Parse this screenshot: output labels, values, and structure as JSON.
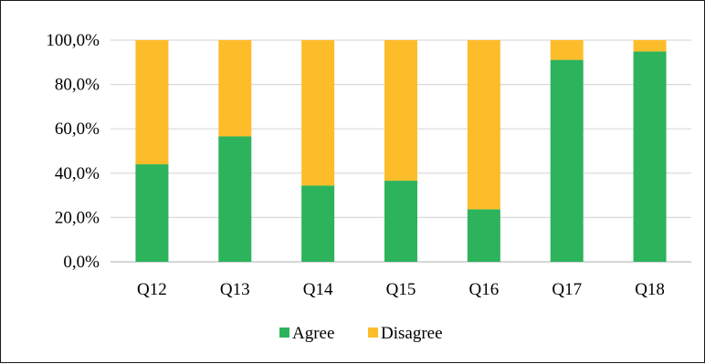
{
  "chart_data": {
    "type": "bar",
    "stacked": true,
    "categories": [
      "Q12",
      "Q13",
      "Q14",
      "Q15",
      "Q16",
      "Q17",
      "Q18"
    ],
    "series": [
      {
        "name": "Agree",
        "color": "#2db35b",
        "values": [
          44.0,
          56.6,
          34.4,
          36.6,
          23.7,
          91.1,
          94.9
        ]
      },
      {
        "name": "Disagree",
        "color": "#fdbd2a",
        "values": [
          56.0,
          43.4,
          65.6,
          63.4,
          76.3,
          8.9,
          5.1
        ]
      }
    ],
    "y_ticks": [
      "0,0%",
      "20,0%",
      "40,0%",
      "60,0%",
      "80,0%",
      "100,0%"
    ],
    "y_tick_values": [
      0,
      20,
      40,
      60,
      80,
      100
    ],
    "ylim": [
      0,
      100
    ],
    "grid": true,
    "legend_position": "bottom",
    "title": "",
    "xlabel": "",
    "ylabel": ""
  },
  "colors": {
    "gridline": "#d9d9d9",
    "axis": "#bfbfbf"
  }
}
